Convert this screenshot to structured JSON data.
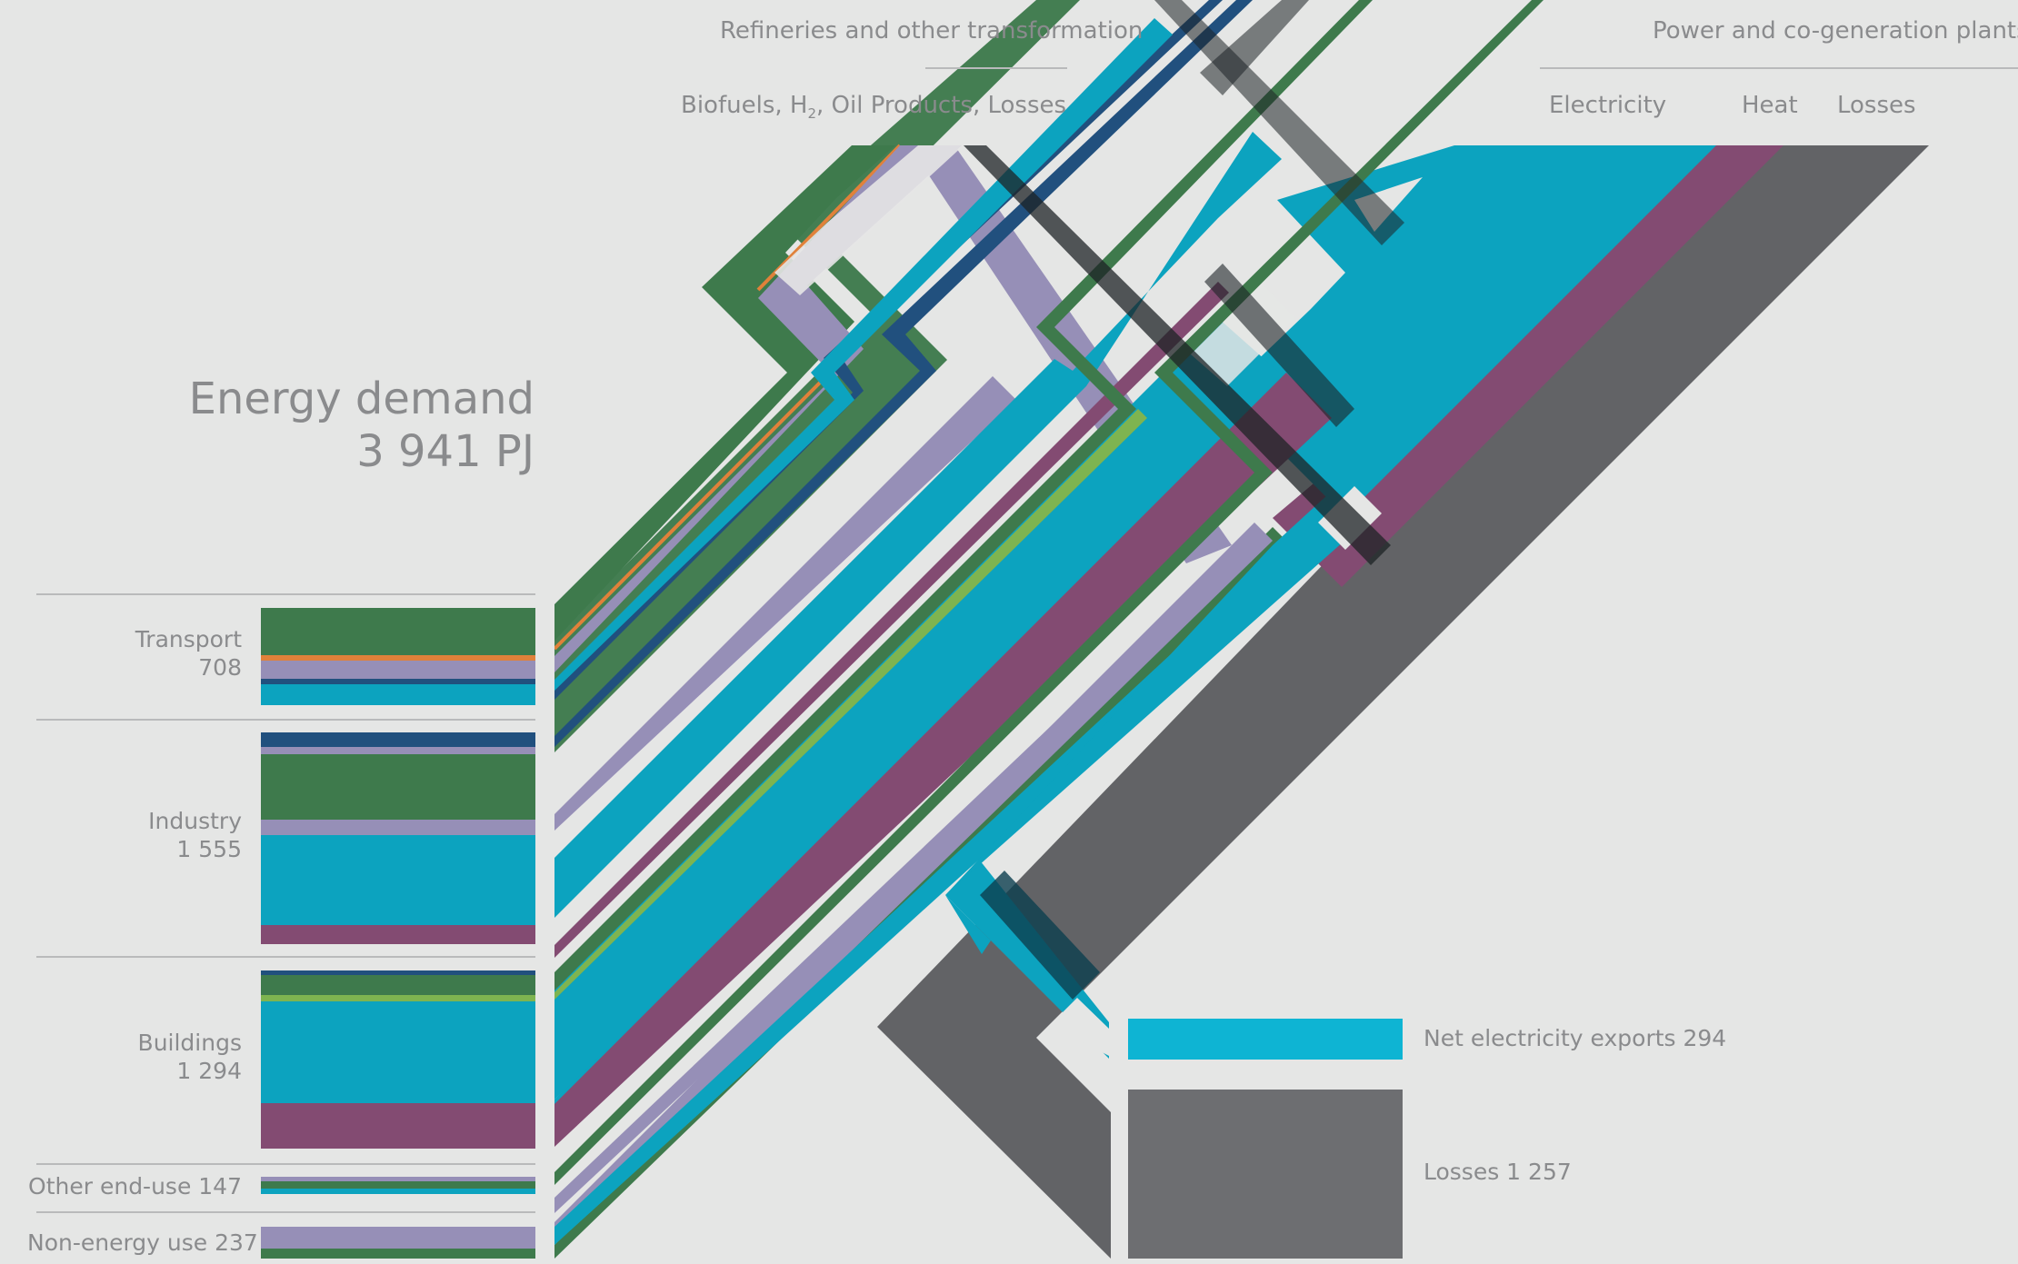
{
  "headers": {
    "refineries": "Refineries and other transformation",
    "refineries_sub_a": "Biofuels, H",
    "refineries_sub_b": "2",
    "refineries_sub_c": ", Oil Products, Losses",
    "power": "Power and co-generation plants",
    "electricity": "Electricity",
    "heat": "Heat",
    "losses": "Losses"
  },
  "demand": {
    "title": "Energy demand",
    "total": "3 941 PJ"
  },
  "sectors": [
    {
      "name": "Transport",
      "value": "708"
    },
    {
      "name": "Industry",
      "value": "1 555"
    },
    {
      "name": "Buildings",
      "value": "1 294"
    },
    {
      "name": "Other end-use 147",
      "value": ""
    },
    {
      "name": "Non-energy use 237",
      "value": ""
    }
  ],
  "outputs": {
    "exports": "Net electricity exports 294",
    "losses": "Losses 1 257"
  },
  "colors": {
    "background": "#e5e6e5",
    "electricity": "#0ca3bf",
    "electricity_bright": "#0eb4d3",
    "heat": "#834b72",
    "losses": "#626366",
    "losses_box": "#6d6e71",
    "bio_green": "#3e7a4c",
    "oil_lavender": "#968fb7",
    "gas_navy": "#21507e",
    "light_green": "#7eb450",
    "orange": "#e0813a",
    "dark": "#1d2326"
  },
  "chart_data": {
    "type": "sankey",
    "title": "Energy demand 3 941 PJ",
    "sinks": [
      {
        "name": "Transport",
        "value": 708
      },
      {
        "name": "Industry",
        "value": 1555
      },
      {
        "name": "Buildings",
        "value": 1294
      },
      {
        "name": "Other end-use",
        "value": 147
      },
      {
        "name": "Non-energy use",
        "value": 237
      },
      {
        "name": "Net electricity exports",
        "value": 294
      },
      {
        "name": "Losses",
        "value": 1257
      }
    ],
    "transformation_nodes": [
      "Refineries and other transformation",
      "Power and co-generation plants"
    ],
    "carriers": [
      "Biofuels",
      "H2",
      "Oil Products",
      "Electricity",
      "Heat",
      "Losses"
    ]
  }
}
